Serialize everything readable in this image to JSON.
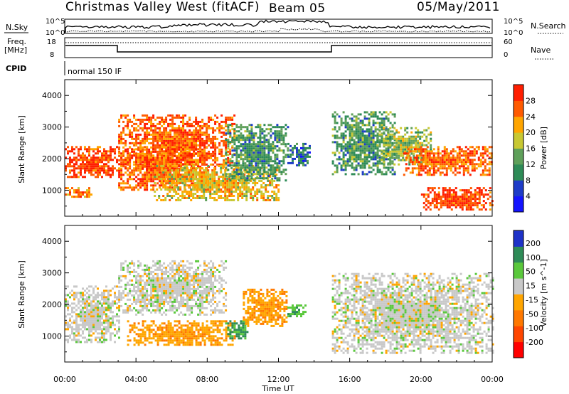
{
  "header": {
    "title": "Christmas Valley West (fitACF)",
    "beam": "Beam 05",
    "date": "05/May/2011"
  },
  "status_panels": {
    "nsky_label": "N.Sky",
    "nsearch_label": "N.Search",
    "nsky_ticks": [
      "10^5",
      "10^0"
    ],
    "nsearch_ticks": [
      "10^5",
      "10^0"
    ],
    "freq_label_line1": "Freq.",
    "freq_label_line2": "[MHz]",
    "freq_ticks": [
      "18",
      "8"
    ],
    "nave_label": "Nave",
    "nave_ticks": [
      "60",
      "0"
    ],
    "cpid_label": "CPID",
    "cpid_value": "normal 150 IF"
  },
  "chart_data": [
    {
      "type": "heatmap",
      "name_panel": "power",
      "ylabel": "Slant Range [km]",
      "xlabel": "",
      "x_ticks": [
        "00:00",
        "04:00",
        "08:00",
        "12:00",
        "16:00",
        "20:00",
        "00:00"
      ],
      "xlim": [
        0,
        24
      ],
      "y_ticks": [
        1000,
        2000,
        3000,
        4000
      ],
      "ylim": [
        180,
        4500
      ],
      "colorbar": {
        "label": "Power [dB]",
        "ticks": [
          4,
          8,
          12,
          16,
          20,
          24,
          28
        ],
        "range": [
          0,
          32
        ],
        "colors": [
          "#1414ff",
          "#1e3cc8",
          "#2e8b57",
          "#5fa05a",
          "#c8c832",
          "#ffa500",
          "#ff5a00",
          "#ff1e00"
        ]
      },
      "regions": [
        {
          "t": [
            0.0,
            3.0
          ],
          "r": [
            1400,
            2400
          ],
          "level": 28
        },
        {
          "t": [
            0.0,
            1.5
          ],
          "r": [
            800,
            1100
          ],
          "level": 24
        },
        {
          "t": [
            3.0,
            9.5
          ],
          "r": [
            1700,
            3400
          ],
          "level": 26
        },
        {
          "t": [
            3.0,
            8.0
          ],
          "r": [
            1000,
            2400
          ],
          "level": 26
        },
        {
          "t": [
            5.0,
            12.0
          ],
          "r": [
            700,
            1800
          ],
          "level": 20
        },
        {
          "t": [
            9.0,
            12.5
          ],
          "r": [
            1300,
            3100
          ],
          "level": 12
        },
        {
          "t": [
            12.5,
            13.8
          ],
          "r": [
            1800,
            2500
          ],
          "level": 8
        },
        {
          "t": [
            15.0,
            18.5
          ],
          "r": [
            1500,
            3500
          ],
          "level": 12
        },
        {
          "t": [
            17.5,
            20.5
          ],
          "r": [
            1800,
            3000
          ],
          "level": 16
        },
        {
          "t": [
            19.0,
            24.0
          ],
          "r": [
            1500,
            2400
          ],
          "level": 26
        },
        {
          "t": [
            20.0,
            24.0
          ],
          "r": [
            400,
            1100
          ],
          "level": 28
        }
      ]
    },
    {
      "type": "heatmap",
      "name_panel": "velocity",
      "ylabel": "Slant Range [km]",
      "xlabel": "Time UT",
      "x_ticks": [
        "00:00",
        "04:00",
        "08:00",
        "12:00",
        "16:00",
        "20:00",
        "00:00"
      ],
      "xlim": [
        0,
        24
      ],
      "y_ticks": [
        1000,
        2000,
        3000,
        4000
      ],
      "ylim": [
        180,
        4500
      ],
      "colorbar": {
        "label": "Velocity [m s^-1]",
        "ticks": [
          200,
          100,
          50,
          15,
          -15,
          -50,
          -100,
          -200
        ],
        "colors": [
          "#1e32c8",
          "#2e8b57",
          "#5ac83c",
          "#c8c8c8",
          "#ffa500",
          "#ff7800",
          "#ff4600",
          "#ff0000"
        ]
      },
      "regions": [
        {
          "t": [
            0.0,
            3.0
          ],
          "r": [
            800,
            2600
          ],
          "level": 0
        },
        {
          "t": [
            3.0,
            9.0
          ],
          "r": [
            1700,
            3400
          ],
          "level": 0
        },
        {
          "t": [
            3.5,
            9.5
          ],
          "r": [
            700,
            1500
          ],
          "level": -40
        },
        {
          "t": [
            9.0,
            10.3
          ],
          "r": [
            900,
            1500
          ],
          "level": 60
        },
        {
          "t": [
            10.0,
            12.5
          ],
          "r": [
            1300,
            2500
          ],
          "level": -40
        },
        {
          "t": [
            12.5,
            13.5
          ],
          "r": [
            1600,
            2000
          ],
          "level": 40
        },
        {
          "t": [
            15.0,
            24.0
          ],
          "r": [
            500,
            3000
          ],
          "level": 0
        }
      ]
    }
  ]
}
